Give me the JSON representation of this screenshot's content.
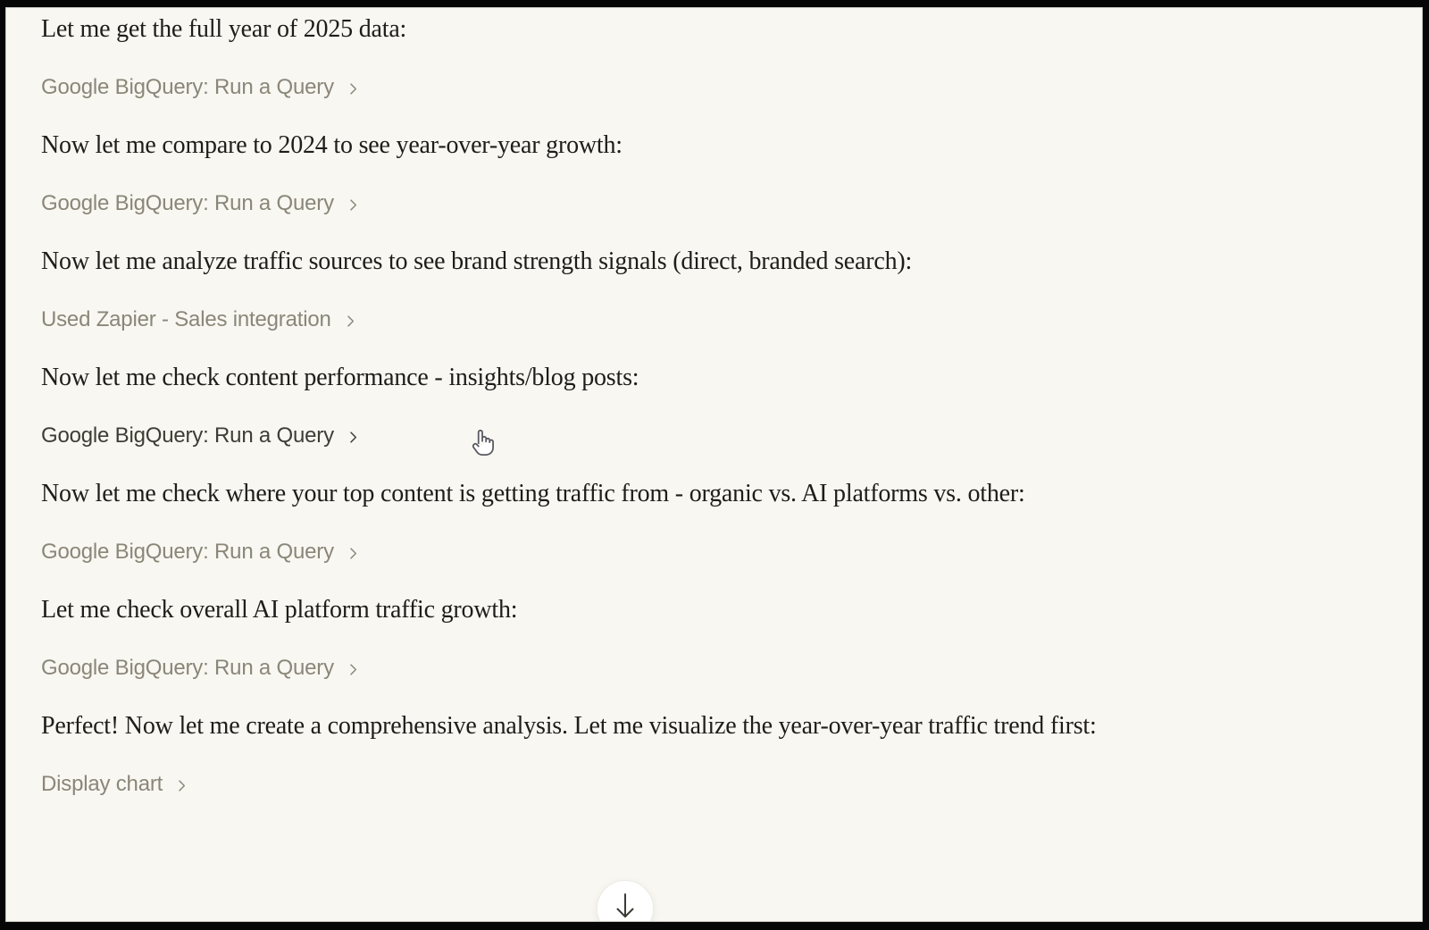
{
  "page": {
    "background_color": "#f8f7f1",
    "frame_color": "#060606",
    "text_color": "#1e1d19",
    "tool_label_color": "#8b8679",
    "tool_label_hover_color": "#3f3c35"
  },
  "conversation": {
    "blocks": [
      {
        "type": "text",
        "text": "Let me get the full year of 2025 data:"
      },
      {
        "type": "tool",
        "label": "Google BigQuery: Run a Query",
        "hovered": false
      },
      {
        "type": "text",
        "text": "Now let me compare to 2024 to see year-over-year growth:"
      },
      {
        "type": "tool",
        "label": "Google BigQuery: Run a Query",
        "hovered": false
      },
      {
        "type": "text",
        "text": "Now let me analyze traffic sources to see brand strength signals (direct, branded search):"
      },
      {
        "type": "tool",
        "label": "Used Zapier - Sales integration",
        "hovered": false
      },
      {
        "type": "text",
        "text": "Now let me check content performance - insights/blog posts:"
      },
      {
        "type": "tool",
        "label": "Google BigQuery: Run a Query",
        "hovered": true
      },
      {
        "type": "text",
        "text": "Now let me check where your top content is getting traffic from - organic vs. AI platforms vs. other:"
      },
      {
        "type": "tool",
        "label": "Google BigQuery: Run a Query",
        "hovered": false
      },
      {
        "type": "text",
        "text": "Let me check overall AI platform traffic growth:"
      },
      {
        "type": "tool",
        "label": "Google BigQuery: Run a Query",
        "hovered": false
      },
      {
        "type": "text",
        "text": "Perfect! Now let me create a comprehensive analysis. Let me visualize the year-over-year traffic trend first:"
      },
      {
        "type": "tool",
        "label": "Display chart",
        "hovered": false
      }
    ]
  },
  "icons": {
    "tool_chevron": "chevron-right",
    "scroll_button": "arrow-down",
    "mouse_cursor": "hand-pointer"
  }
}
